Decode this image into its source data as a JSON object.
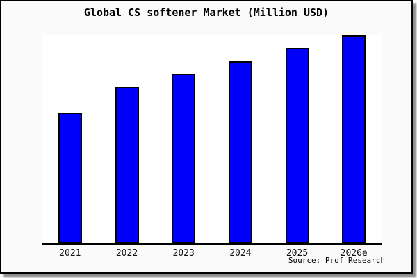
{
  "chart_data": {
    "type": "bar",
    "title": "Global CS softener Market (Million USD)",
    "categories": [
      "2021",
      "2022",
      "2023",
      "2024",
      "2025",
      "2026e"
    ],
    "values": [
      62.9,
      75.3,
      81.6,
      87.8,
      94.0,
      100.0
    ],
    "value_note": "y-axis shows no ticks, labels or gridlines; values are relative bar heights indexed to 2026e = 100",
    "xlabel": "",
    "ylabel": "",
    "ylim": [
      0,
      100.5
    ],
    "grid": false,
    "legend": false,
    "bar_color": "#0000fa",
    "bar_border_color": "#000000",
    "plot_background": "#ffffff",
    "panel_background": "#fafafa"
  },
  "source": {
    "text": "Source: Prof Research"
  }
}
